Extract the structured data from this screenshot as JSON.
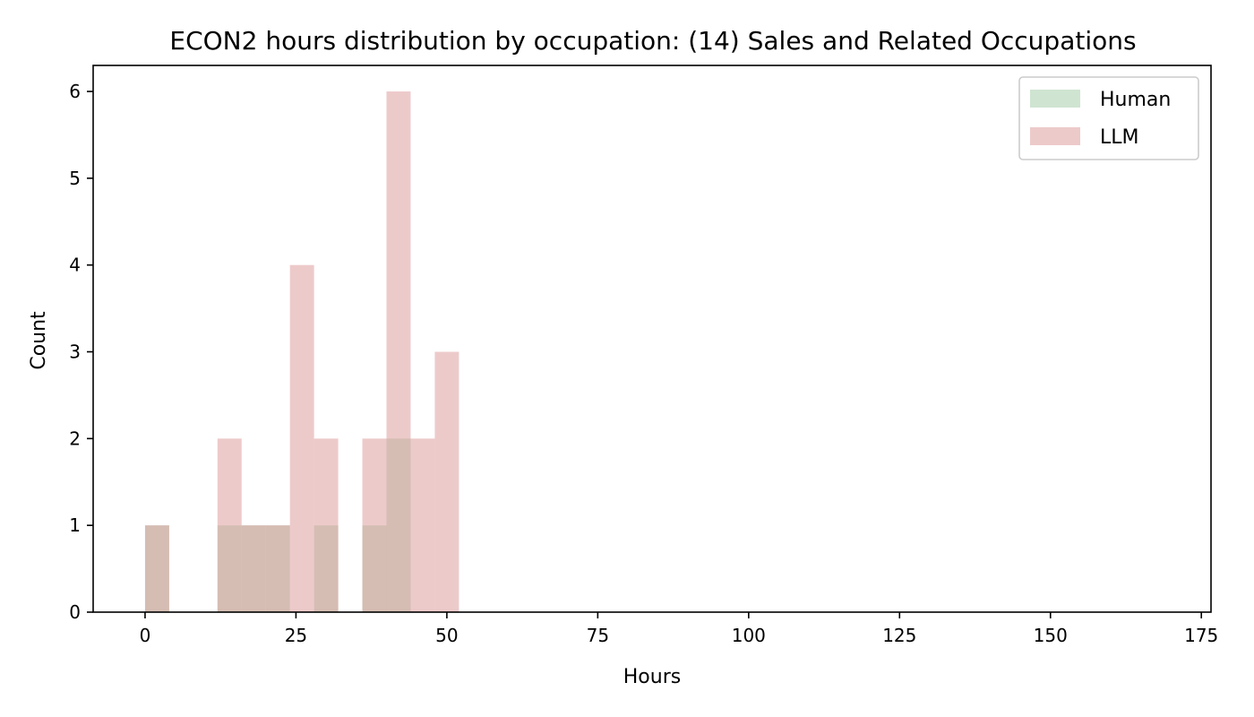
{
  "chart_data": {
    "type": "bar",
    "title": "ECON2 hours distribution by occupation: (14) Sales and Related Occupations",
    "xlabel": "Hours",
    "ylabel": "Count",
    "xlim": [
      -8.6,
      176.6
    ],
    "ylim": [
      0,
      6.3
    ],
    "xticks": [
      0,
      25,
      50,
      75,
      100,
      125,
      150,
      175
    ],
    "yticks": [
      0,
      1,
      2,
      3,
      4,
      5,
      6
    ],
    "grid": false,
    "legend_position": "top-right",
    "bin_width": 4,
    "series": [
      {
        "name": "Human",
        "color": "#9fcaa4",
        "opacity": 0.5,
        "bins": [
          {
            "start": 0,
            "count": 1
          },
          {
            "start": 12,
            "count": 1
          },
          {
            "start": 16,
            "count": 1
          },
          {
            "start": 20,
            "count": 1
          },
          {
            "start": 28,
            "count": 1
          },
          {
            "start": 36,
            "count": 1
          },
          {
            "start": 40,
            "count": 2
          }
        ]
      },
      {
        "name": "LLM",
        "color": "#db9596",
        "opacity": 0.5,
        "bins": [
          {
            "start": 0,
            "count": 1
          },
          {
            "start": 12,
            "count": 2
          },
          {
            "start": 16,
            "count": 1
          },
          {
            "start": 20,
            "count": 1
          },
          {
            "start": 24,
            "count": 4
          },
          {
            "start": 28,
            "count": 2
          },
          {
            "start": 36,
            "count": 2
          },
          {
            "start": 40,
            "count": 6
          },
          {
            "start": 44,
            "count": 2
          },
          {
            "start": 48,
            "count": 3
          }
        ]
      }
    ]
  }
}
